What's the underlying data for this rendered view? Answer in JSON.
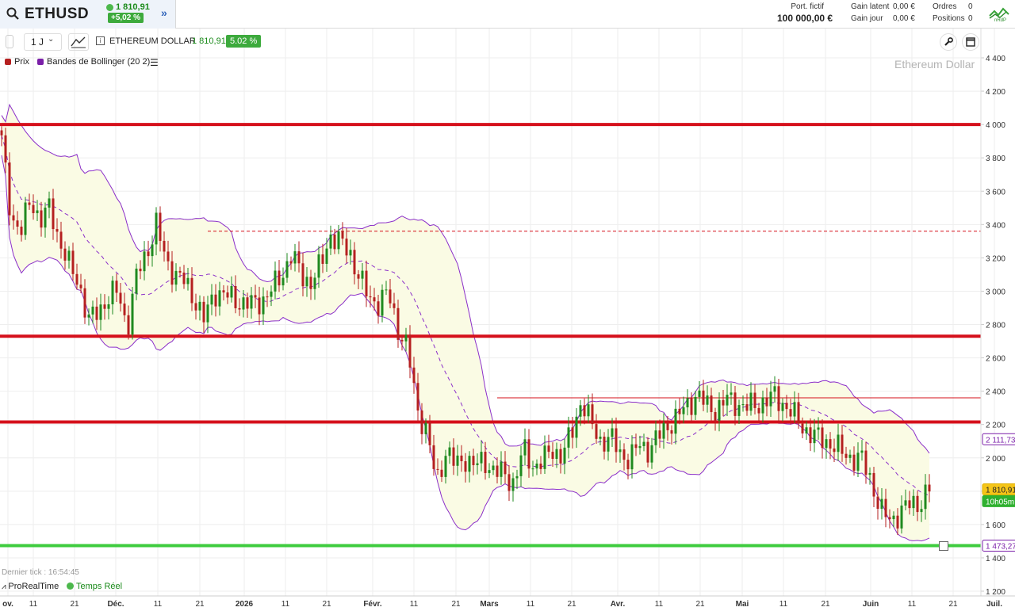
{
  "topbar": {
    "symbol": "ETHUSD",
    "last_price": "1 810,91",
    "change_pct": "+5,02 %",
    "portfolio_label": "Port. fictif",
    "portfolio_value": "100 000,00 €",
    "gain_latent_label": "Gain latent",
    "gain_latent_value": "0,00 €",
    "gain_jour_label": "Gain jour",
    "gain_jour_value": "0,00 €",
    "ordres_label": "Ordres",
    "ordres_value": "0",
    "positions_label": "Positions",
    "positions_value": "0",
    "logo_text": "nRdP"
  },
  "toolbar": {
    "period": "1 J",
    "instrument": "ETHEREUM DOLLAR",
    "price": "1 810,91",
    "pct": "5.02 %"
  },
  "legend": {
    "price_label": "Prix",
    "bollinger_label": "Bandes de Bollinger (20 2)"
  },
  "watermark": "Ethereum Dollar",
  "footer": {
    "last_tick": "Dernier tick : 16:54:45",
    "provider": "ProRealTime",
    "realtime": "Temps Réel"
  },
  "colors": {
    "up": "#1f8a1f",
    "down": "#b52020",
    "band": "#8b2fc9",
    "band_fill": "#fafbe4",
    "resistance": "#d5101b",
    "support": "#3fcc3f"
  },
  "chart_data": {
    "type": "candlestick",
    "y_ticks": [
      1200,
      1400,
      1600,
      1800,
      2000,
      2200,
      2400,
      2600,
      2800,
      3000,
      3200,
      3400,
      3600,
      3800,
      4000,
      4200,
      4400
    ],
    "y_tick_labels": [
      "1 200",
      "1 400",
      "1 600",
      "1 800",
      "2 000",
      "2 200",
      "2 400",
      "2 600",
      "2 800",
      "3 000",
      "3 200",
      "3 400",
      "3 600",
      "3 800",
      "4 000",
      "4 200",
      "4 400"
    ],
    "x_labels": [
      "ov.",
      "11",
      "21",
      "Déc.",
      "11",
      "21",
      "2026",
      "11",
      "21",
      "Févr.",
      "11",
      "21",
      "Mars",
      "11",
      "21",
      "Avr.",
      "11",
      "21",
      "Mai",
      "11",
      "21",
      "Juin",
      "11",
      "21",
      "Juil."
    ],
    "horizontal_lines": [
      {
        "value": 4000,
        "color": "red",
        "width": "thick"
      },
      {
        "value": 2730,
        "color": "red",
        "width": "thick"
      },
      {
        "value": 2215,
        "color": "red",
        "width": "thick"
      },
      {
        "value": 2360,
        "color": "red",
        "width": "thin"
      },
      {
        "value": 3360,
        "color": "red",
        "width": "dashed"
      },
      {
        "value": 1473.27,
        "color": "green",
        "width": "thick"
      }
    ],
    "price_labels": [
      {
        "text": "2 111,73"
      },
      {
        "text": "1 810,91"
      },
      {
        "text": "10h05m"
      },
      {
        "text": "1 473,27"
      }
    ],
    "price_path": [
      [
        0,
        3900
      ],
      [
        3,
        3450
      ],
      [
        6,
        3350
      ],
      [
        9,
        3560
      ],
      [
        12,
        3420
      ],
      [
        15,
        3500
      ],
      [
        18,
        3300
      ],
      [
        21,
        3150
      ],
      [
        24,
        3050
      ],
      [
        27,
        2820
      ],
      [
        30,
        2880
      ],
      [
        33,
        2960
      ],
      [
        36,
        3000
      ],
      [
        39,
        2780
      ],
      [
        42,
        3100
      ],
      [
        45,
        3230
      ],
      [
        48,
        3400
      ],
      [
        51,
        3180
      ],
      [
        54,
        3100
      ],
      [
        57,
        3050
      ],
      [
        60,
        2950
      ],
      [
        63,
        2820
      ],
      [
        66,
        3000
      ],
      [
        69,
        2980
      ],
      [
        72,
        2950
      ],
      [
        75,
        2930
      ],
      [
        78,
        2920
      ],
      [
        81,
        2950
      ],
      [
        84,
        3010
      ],
      [
        87,
        3100
      ],
      [
        90,
        3220
      ],
      [
        93,
        3100
      ],
      [
        96,
        3050
      ],
      [
        99,
        3150
      ],
      [
        102,
        3340
      ],
      [
        105,
        3290
      ],
      [
        108,
        3240
      ],
      [
        111,
        3080
      ],
      [
        114,
        2960
      ],
      [
        117,
        2930
      ],
      [
        120,
        2990
      ],
      [
        123,
        2780
      ],
      [
        126,
        2650
      ],
      [
        129,
        2300
      ],
      [
        132,
        2150
      ],
      [
        135,
        1850
      ],
      [
        138,
        2050
      ],
      [
        141,
        1950
      ],
      [
        144,
        2000
      ],
      [
        147,
        1950
      ],
      [
        150,
        1980
      ],
      [
        153,
        1920
      ],
      [
        156,
        1900
      ],
      [
        159,
        1850
      ],
      [
        162,
        2050
      ],
      [
        165,
        1950
      ],
      [
        168,
        1980
      ],
      [
        171,
        2050
      ],
      [
        174,
        2010
      ],
      [
        177,
        2150
      ],
      [
        180,
        2350
      ],
      [
        183,
        2200
      ],
      [
        186,
        2100
      ],
      [
        189,
        2120
      ],
      [
        192,
        2030
      ],
      [
        195,
        1990
      ],
      [
        198,
        2080
      ],
      [
        201,
        2050
      ],
      [
        204,
        2130
      ],
      [
        207,
        2200
      ],
      [
        210,
        2250
      ],
      [
        213,
        2320
      ],
      [
        216,
        2380
      ],
      [
        219,
        2310
      ],
      [
        222,
        2290
      ],
      [
        225,
        2350
      ],
      [
        228,
        2330
      ],
      [
        231,
        2300
      ],
      [
        234,
        2320
      ],
      [
        237,
        2340
      ],
      [
        240,
        2370
      ],
      [
        243,
        2320
      ],
      [
        246,
        2250
      ],
      [
        249,
        2180
      ],
      [
        252,
        2130
      ],
      [
        255,
        2110
      ],
      [
        258,
        2080
      ],
      [
        261,
        2030
      ],
      [
        264,
        2000
      ],
      [
        267,
        1990
      ],
      [
        270,
        1860
      ],
      [
        273,
        1680
      ],
      [
        276,
        1620
      ],
      [
        279,
        1680
      ],
      [
        282,
        1720
      ],
      [
        285,
        1730
      ],
      [
        288,
        1810
      ]
    ]
  }
}
